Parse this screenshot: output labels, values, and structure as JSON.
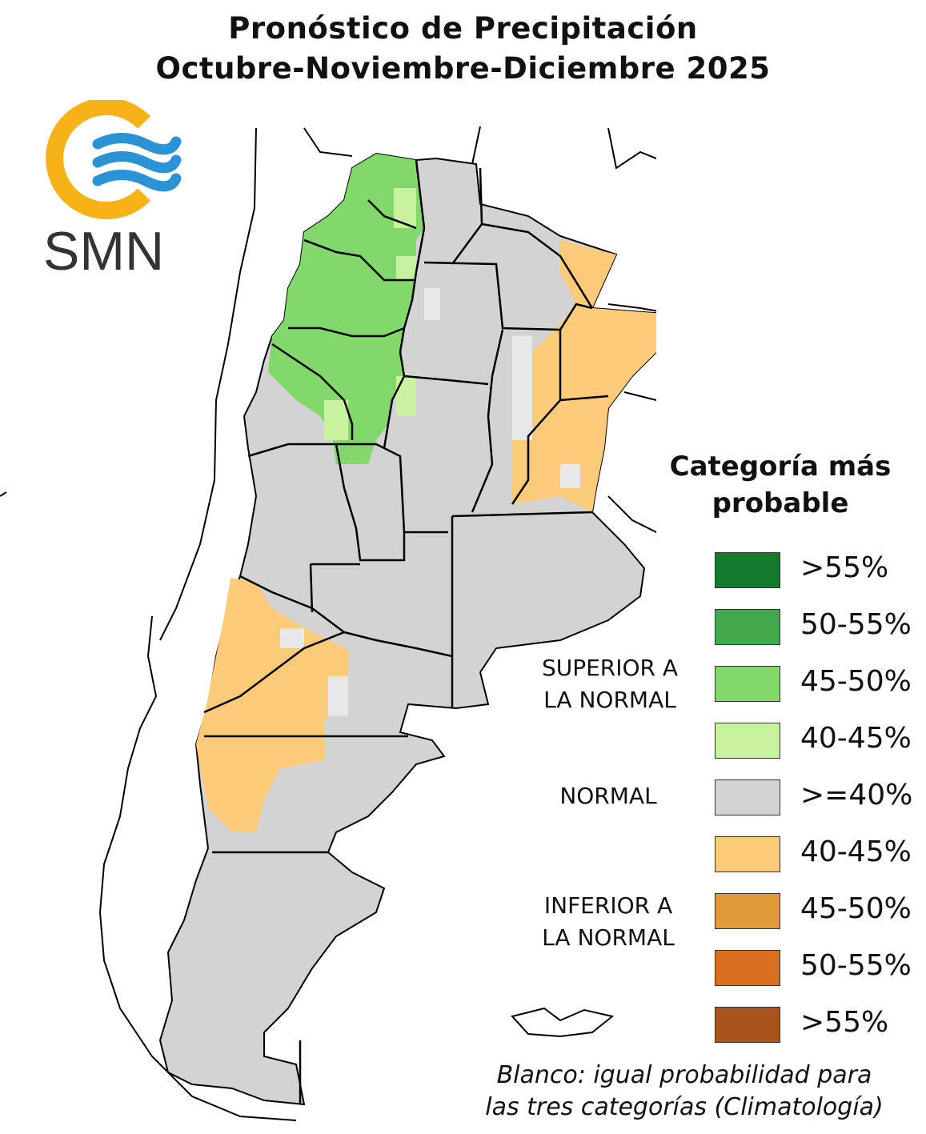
{
  "title": {
    "line1": "Pronóstico de Precipitación",
    "line2": "Octubre-Noviembre-Diciembre 2025"
  },
  "logo": {
    "text": "SMN",
    "ring_color": "#F7B217",
    "wave_color": "#2A93D5"
  },
  "legend": {
    "title_line1": "Categoría más",
    "title_line2": "probable",
    "items": [
      {
        "label": ">55%",
        "color": "#167A2E"
      },
      {
        "label": "50-55%",
        "color": "#44A84C"
      },
      {
        "label": "45-50%",
        "color": "#82D86B"
      },
      {
        "label": "40-45%",
        "color": "#C9F2A0"
      },
      {
        "label": ">=40%",
        "color": "#D3D3D3"
      },
      {
        "label": "40-45%",
        "color": "#FCCB7A"
      },
      {
        "label": "45-50%",
        "color": "#E09A38"
      },
      {
        "label": "50-55%",
        "color": "#D86E1E"
      },
      {
        "label": ">55%",
        "color": "#A8541B"
      }
    ],
    "categories": {
      "superior_line1": "SUPERIOR A",
      "superior_line2": "LA NORMAL",
      "normal": "NORMAL",
      "inferior_line1": "INFERIOR A",
      "inferior_line2": "LA NORMAL"
    }
  },
  "note": {
    "line1": "Blanco: igual probabilidad para",
    "line2": "las tres categorías (Climatología)"
  },
  "map_colors": {
    "normal": "#D3D3D3",
    "above_45_50": "#82D86B",
    "above_40_45": "#C9F2A0",
    "below_40_45": "#FCCB7A",
    "climatology": "#E8E8E8",
    "border": "#000000"
  }
}
